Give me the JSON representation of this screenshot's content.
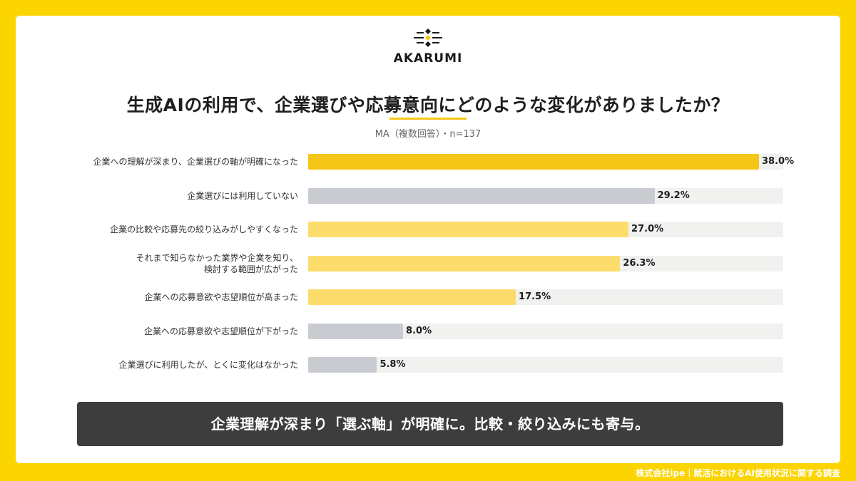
{
  "brand": {
    "name": "AKARUMI",
    "logo_icon": "akarumi-logo-icon",
    "bg_color": "#fcd400"
  },
  "title": "生成AIの利用で、企業選びや応募意向にどのような変化がありましたか？",
  "subtitle": "MA（複数回答）・n=137",
  "chart_data": {
    "type": "bar",
    "orientation": "horizontal",
    "categories": [
      "企業への理解が深まり、企業選びの軸が明確になった",
      "企業選びには利用していない",
      "企業の比較や応募先の絞り込みがしやすくなった",
      "それまで知らなかった業界や企業を知り、\n検討する範囲が広がった",
      "企業への応募意欲や志望順位が高まった",
      "企業への応募意欲や志望順位が下がった",
      "企業選びに利用したが、とくに変化はなかった"
    ],
    "values": [
      38.0,
      29.2,
      27.0,
      26.3,
      17.5,
      8.0,
      5.8
    ],
    "value_labels": [
      "38.0%",
      "29.2%",
      "27.0%",
      "26.3%",
      "17.5%",
      "8.0%",
      "5.8%"
    ],
    "colors": [
      "#f5c518",
      "#c8cbd0",
      "#fcdc6a",
      "#fcdc6a",
      "#fcdc6a",
      "#c8cbd0",
      "#c8cbd0"
    ],
    "xlim": [
      0,
      40
    ],
    "grid": false,
    "title": "生成AIの利用で、企業選びや応募意向にどのような変化がありましたか？",
    "xlabel": "",
    "ylabel": ""
  },
  "banner": {
    "text": "企業理解が深まり「選ぶ軸」が明確に。比較・絞り込みにも寄与。"
  },
  "footer": {
    "text": "株式会社ipe｜就活におけるAI使用状況に関する調査"
  }
}
